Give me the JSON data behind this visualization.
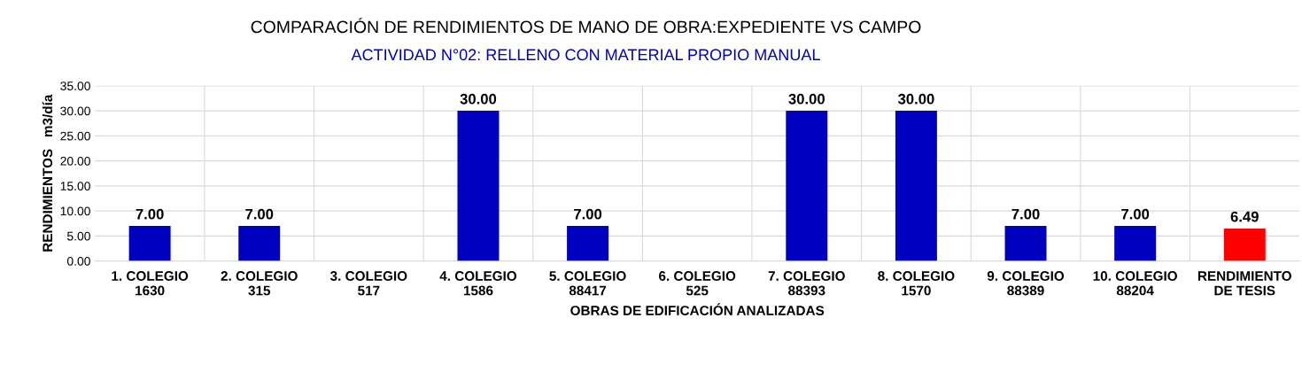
{
  "chart_data": {
    "type": "bar",
    "title": "COMPARACIÓN DE RENDIMIENTOS DE MANO DE OBRA:EXPEDIENTE VS CAMPO",
    "subtitle": "ACTIVIDAD N°02: RELLENO CON MATERIAL PROPIO MANUAL",
    "xlabel": "OBRAS DE EDIFICACIÓN ANALIZADAS",
    "ylabel": "RENDIMIENTOS   m3/día",
    "categories": [
      "1. COLEGIO\n1630",
      "2. COLEGIO\n315",
      "3. COLEGIO\n517",
      "4. COLEGIO\n1586",
      "5. COLEGIO\n88417",
      "6. COLEGIO\n525",
      "7. COLEGIO\n88393",
      "8. COLEGIO\n1570",
      "9. COLEGIO\n88389",
      "10. COLEGIO\n88204",
      "RENDIMIENTO\nDE TESIS"
    ],
    "values": [
      7,
      7,
      null,
      30,
      7,
      null,
      30,
      30,
      7,
      7,
      6.49
    ],
    "colors": [
      "#0000c0",
      "#0000c0",
      "#0000c0",
      "#0000c0",
      "#0000c0",
      "#0000c0",
      "#0000c0",
      "#0000c0",
      "#0000c0",
      "#0000c0",
      "#ff0000"
    ],
    "value_labels": [
      "7.00",
      "7.00",
      null,
      "30.00",
      "7.00",
      null,
      "30.00",
      "30.00",
      "7.00",
      "7.00",
      "6.49"
    ],
    "ylim": [
      0,
      35
    ],
    "yticks": [
      {
        "value": 0,
        "label": "0.00"
      },
      {
        "value": 5,
        "label": "5.00"
      },
      {
        "value": 10,
        "label": "10.00"
      },
      {
        "value": 15,
        "label": "15.00"
      },
      {
        "value": 20,
        "label": "20.00"
      },
      {
        "value": 25,
        "label": "25.00"
      },
      {
        "value": 30,
        "label": "30.00"
      },
      {
        "value": 35,
        "label": "35.00"
      }
    ],
    "grid": true
  }
}
